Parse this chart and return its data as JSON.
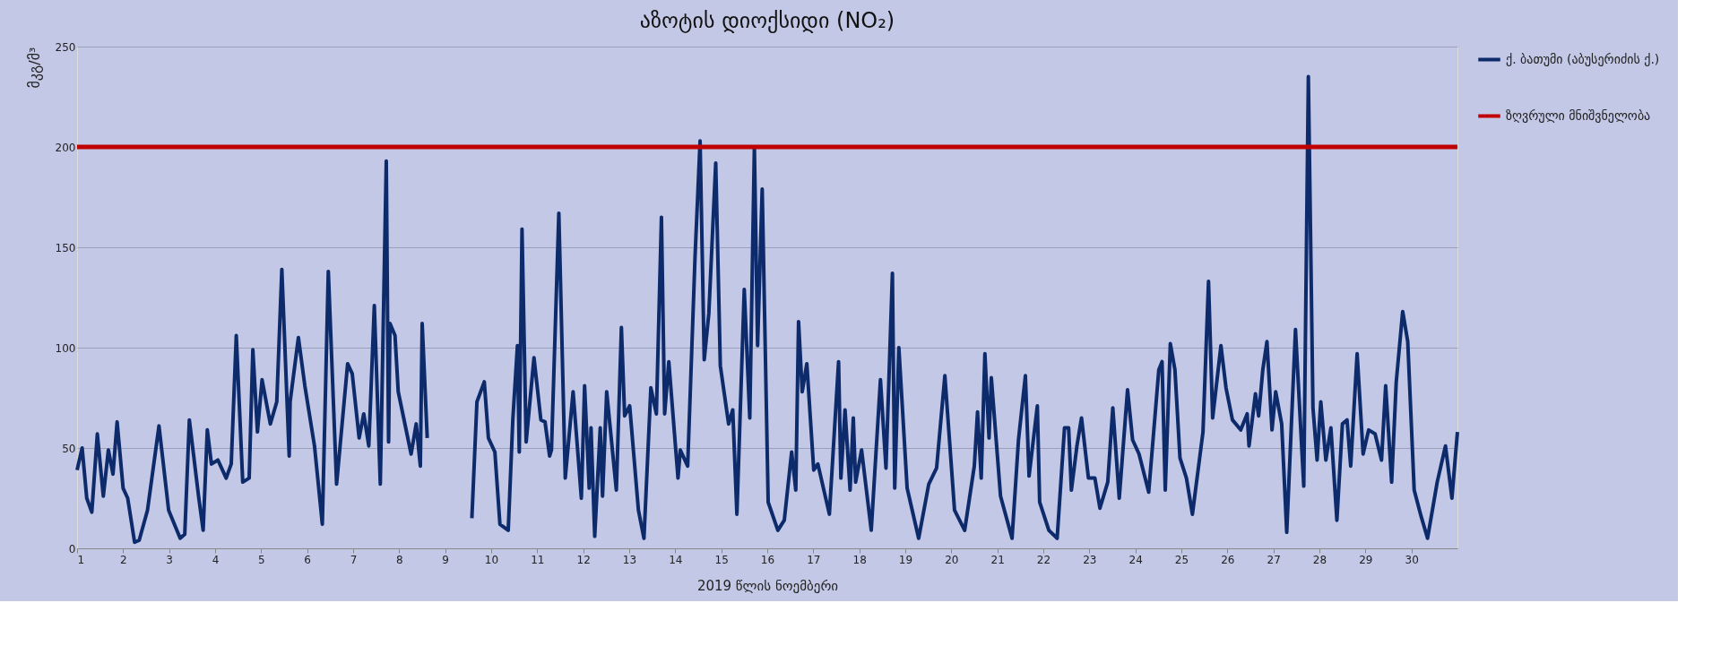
{
  "chart_data": {
    "type": "line",
    "title": "აზოტის დიოქსიდი (NO₂)",
    "xlabel": "2019 წლის ნოემბერი",
    "ylabel": "მკგ/მ³",
    "xlim": [
      1,
      31
    ],
    "xticks": [
      1,
      2,
      3,
      4,
      5,
      6,
      7,
      8,
      9,
      10,
      11,
      12,
      13,
      14,
      15,
      16,
      17,
      18,
      19,
      20,
      21,
      22,
      23,
      24,
      25,
      26,
      27,
      28,
      29,
      30
    ],
    "ylim": [
      0,
      250
    ],
    "yticks": [
      0,
      50,
      100,
      150,
      200,
      250
    ],
    "grid": "y",
    "legend": "right",
    "line_style": "solid",
    "marker": "none",
    "series": [
      {
        "name": "ქ. ბათუმი (აბუსერიძის ქ.)",
        "color": "#0d2a6b",
        "x": [
          1.0,
          1.11,
          1.21,
          1.32,
          1.44,
          1.57,
          1.68,
          1.78,
          1.87,
          2.0,
          2.1,
          2.25,
          2.35,
          2.53,
          2.78,
          2.99,
          3.24,
          3.34,
          3.44,
          3.64,
          3.74,
          3.83,
          3.92,
          4.06,
          4.24,
          4.35,
          4.46,
          4.6,
          4.74,
          4.82,
          4.92,
          5.02,
          5.2,
          5.34,
          5.45,
          5.61,
          5.63,
          5.81,
          5.95,
          6.16,
          6.33,
          6.46,
          6.64,
          6.88,
          6.98,
          7.13,
          7.23,
          7.34,
          7.46,
          7.59,
          7.72,
          7.77,
          7.8,
          7.91,
          7.98,
          8.26,
          8.37,
          8.46,
          8.5,
          8.61,
          9.0,
          9.58,
          9.69,
          9.85,
          9.94,
          10.08,
          10.19,
          10.37,
          10.47,
          10.57,
          10.61,
          10.67,
          10.76,
          10.93,
          11.08,
          11.17,
          11.27,
          11.31,
          11.47,
          11.61,
          11.78,
          11.96,
          12.03,
          12.13,
          12.17,
          12.25,
          12.37,
          12.42,
          12.51,
          12.72,
          12.83,
          12.9,
          13.01,
          13.2,
          13.32,
          13.47,
          13.59,
          13.7,
          13.77,
          13.86,
          14.06,
          14.11,
          14.27,
          14.43,
          14.54,
          14.63,
          14.73,
          14.88,
          14.98,
          15.16,
          15.25,
          15.34,
          15.5,
          15.62,
          15.72,
          15.79,
          15.89,
          16.02,
          16.23,
          16.37,
          16.53,
          16.62,
          16.68,
          16.76,
          16.86,
          17.01,
          17.1,
          17.35,
          17.55,
          17.6,
          17.69,
          17.8,
          17.87,
          17.92,
          18.05,
          18.26,
          18.46,
          18.58,
          18.72,
          18.77,
          18.86,
          19.04,
          19.29,
          19.51,
          19.68,
          19.86,
          20.07,
          20.29,
          20.5,
          20.57,
          20.65,
          20.73,
          20.82,
          20.87,
          21.07,
          21.32,
          21.46,
          21.61,
          21.69,
          21.87,
          21.92,
          22.12,
          22.3,
          22.46,
          22.55,
          22.61,
          22.73,
          22.83,
          22.98,
          23.12,
          23.23,
          23.4,
          23.51,
          23.65,
          23.83,
          23.94,
          24.08,
          24.29,
          24.51,
          24.58,
          24.65,
          24.76,
          24.86,
          24.97,
          25.11,
          25.24,
          25.47,
          25.59,
          25.68,
          25.86,
          25.97,
          26.11,
          26.29,
          26.43,
          26.47,
          26.61,
          26.68,
          26.77,
          26.86,
          26.97,
          27.05,
          27.18,
          27.29,
          27.48,
          27.66,
          27.76,
          27.86,
          27.95,
          28.03,
          28.14,
          28.25,
          28.38,
          28.5,
          28.6,
          28.68,
          28.82,
          28.95,
          29.07,
          29.21,
          29.35,
          29.44,
          29.57,
          29.67,
          29.81,
          29.92,
          30.06,
          30.21,
          30.35,
          30.56,
          30.74,
          30.88,
          31.0
        ],
        "values": [
          39,
          50,
          25,
          18,
          57,
          26,
          49,
          37,
          63,
          30,
          25,
          3,
          4,
          19,
          61,
          19,
          5,
          7,
          64,
          26,
          9,
          59,
          42,
          44,
          35,
          42,
          106,
          33,
          35,
          99,
          58,
          84,
          62,
          73,
          139,
          46,
          73,
          105,
          81,
          51,
          12,
          138,
          32,
          92,
          87,
          55,
          67,
          51,
          121,
          32,
          193,
          53,
          112,
          106,
          78,
          47,
          62,
          41,
          112,
          55,
          null,
          15,
          73,
          83,
          55,
          48,
          12,
          9,
          64,
          101,
          48,
          159,
          53,
          95,
          64,
          63,
          46,
          49,
          167,
          35,
          78,
          25,
          81,
          30,
          60,
          6,
          60,
          26,
          78,
          29,
          110,
          66,
          71,
          19,
          5,
          80,
          67,
          165,
          67,
          93,
          35,
          49,
          41,
          145,
          203,
          94,
          117,
          192,
          91,
          62,
          69,
          17,
          129,
          65,
          200,
          101,
          179,
          23,
          9,
          14,
          48,
          29,
          113,
          78,
          92,
          39,
          42,
          17,
          93,
          35,
          69,
          29,
          65,
          33,
          49,
          9,
          84,
          40,
          137,
          30,
          100,
          30,
          5,
          32,
          40,
          86,
          19,
          9,
          41,
          68,
          35,
          97,
          55,
          85,
          26,
          5,
          54,
          86,
          36,
          71,
          23,
          9,
          5,
          60,
          60,
          29,
          51,
          65,
          35,
          35,
          20,
          33,
          70,
          25,
          79,
          54,
          47,
          28,
          89,
          93,
          29,
          102,
          89,
          45,
          35,
          17,
          58,
          133,
          65,
          101,
          80,
          64,
          59,
          67,
          51,
          77,
          66,
          89,
          103,
          59,
          78,
          62,
          8,
          109,
          31,
          235,
          70,
          44,
          73,
          44,
          60,
          14,
          62,
          64,
          41,
          97,
          47,
          59,
          57,
          44,
          81,
          33,
          83,
          118,
          103,
          29,
          16,
          5,
          33,
          51,
          25,
          58
        ]
      },
      {
        "name": "ზღვრული მნიშვნელობა",
        "color": "#c00000",
        "x": [
          1,
          31
        ],
        "values": [
          200,
          200
        ]
      }
    ]
  }
}
